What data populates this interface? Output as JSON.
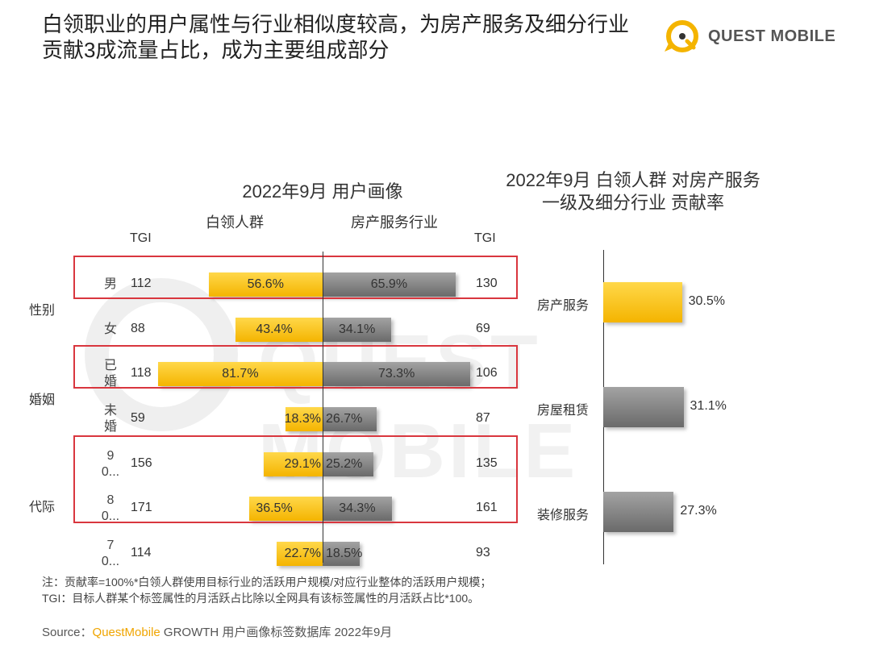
{
  "title": {
    "line1": "白领职业的用户属性与行业相似度较高，为房产服务及细分行业",
    "line2": "贡献3成流量占比，成为主要组成部分"
  },
  "logo": {
    "text": "QUEST MOBILE"
  },
  "watermark": {
    "text": "QUEST MOBILE"
  },
  "colors": {
    "yellow": "#f4b400",
    "gray": "#7a7a7a",
    "highlight": "#d9363e"
  },
  "chart_data": [
    {
      "type": "bar",
      "title": "2022年9月 用户画像",
      "left_series": "白领人群",
      "right_series": "房产服务行业",
      "tgi_label": "TGI",
      "rows": [
        {
          "group": "性别",
          "label": "男",
          "tgi_left": "112",
          "left": 56.6,
          "left_label": "56.6%",
          "right": 65.9,
          "right_label": "65.9%",
          "tgi_right": "130",
          "highlight": true
        },
        {
          "group": "性别",
          "label": "女",
          "tgi_left": "88",
          "left": 43.4,
          "left_label": "43.4%",
          "right": 34.1,
          "right_label": "34.1%",
          "tgi_right": "69",
          "highlight": false
        },
        {
          "group": "婚姻",
          "label": "已婚",
          "tgi_left": "118",
          "left": 81.7,
          "left_label": "81.7%",
          "right": 73.3,
          "right_label": "73.3%",
          "tgi_right": "106",
          "highlight": true
        },
        {
          "group": "婚姻",
          "label": "未婚",
          "tgi_left": "59",
          "left": 18.3,
          "left_label": "18.3%",
          "right": 26.7,
          "right_label": "26.7%",
          "tgi_right": "87",
          "highlight": false
        },
        {
          "group": "代际",
          "label": "90...",
          "tgi_left": "156",
          "left": 29.1,
          "left_label": "29.1%",
          "right": 25.2,
          "right_label": "25.2%",
          "tgi_right": "135",
          "highlight": true
        },
        {
          "group": "代际",
          "label": "80...",
          "tgi_left": "171",
          "left": 36.5,
          "left_label": "36.5%",
          "right": 34.3,
          "right_label": "34.3%",
          "tgi_right": "161",
          "highlight": true
        },
        {
          "group": "代际",
          "label": "70...",
          "tgi_left": "114",
          "left": 22.7,
          "left_label": "22.7%",
          "right": 18.5,
          "right_label": "18.5%",
          "tgi_right": "93",
          "highlight": false
        }
      ],
      "groups": [
        "性别",
        "婚姻",
        "代际"
      ]
    },
    {
      "type": "bar",
      "title_line1": "2022年9月 白领人群 对房产服务",
      "title_line2": "一级及细分行业 贡献率",
      "categories": [
        "房产服务",
        "房屋租赁",
        "装修服务"
      ],
      "values": [
        30.5,
        31.1,
        27.3
      ],
      "value_labels": [
        "30.5%",
        "31.1%",
        "27.3%"
      ],
      "colors": [
        "yellow",
        "gray",
        "gray"
      ]
    }
  ],
  "notes": {
    "line1": "注：贡献率=100%*白领人群使用目标行业的活跃用户规模/对应行业整体的活跃用户规模；",
    "line2": "TGI：目标人群某个标签属性的月活跃占比除以全网具有该标签属性的月活跃占比*100。"
  },
  "source": {
    "prefix": "Source：",
    "brand": "QuestMobile",
    "rest": " GROWTH 用户画像标签数据库 2022年9月"
  }
}
